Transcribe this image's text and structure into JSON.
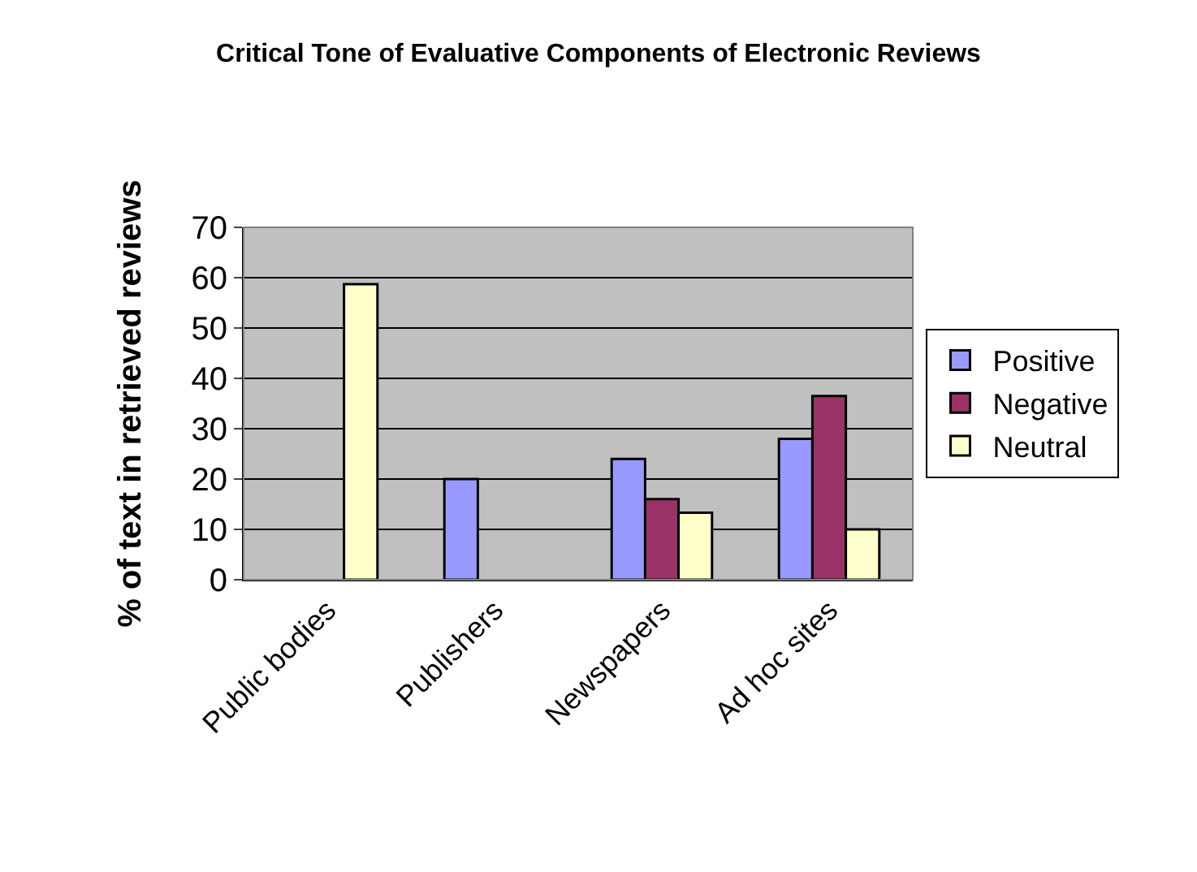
{
  "chart_data": {
    "type": "bar",
    "title": "Critical Tone of Evaluative Components of Electronic Reviews",
    "ylabel": "% of text in retrieved reviews",
    "categories": [
      "Public bodies",
      "Publishers",
      "Newspapers",
      "Ad hoc sites"
    ],
    "series": [
      {
        "name": "Positive",
        "color": "#9999ff",
        "values": [
          null,
          20,
          24,
          28
        ]
      },
      {
        "name": "Negative",
        "color": "#993366",
        "values": [
          null,
          null,
          16,
          36.5
        ]
      },
      {
        "name": "Neutral",
        "color": "#ffffcc",
        "values": [
          58.7,
          null,
          13.3,
          10
        ]
      }
    ],
    "ylim": [
      0,
      70
    ],
    "yticks": [
      0,
      10,
      20,
      30,
      40,
      50,
      60,
      70
    ],
    "grid": "y",
    "legend": "right"
  }
}
